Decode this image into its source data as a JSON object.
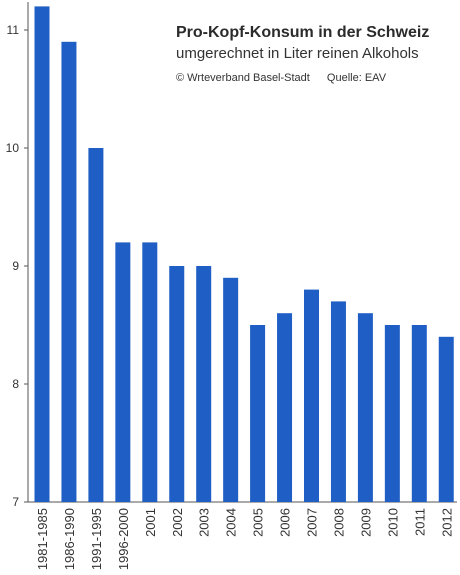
{
  "header": {
    "title": "Pro-Kopf-Konsum in der Schweiz",
    "subtitle": "umgerechnet in Liter reinen Alkohols",
    "copyright": "© Wrteverband Basel-Stadt",
    "source": "Quelle: EAV"
  },
  "colors": {
    "bar": "#1f5fc5",
    "axis": "#555555"
  },
  "chart_data": {
    "type": "bar",
    "title": "Pro-Kopf-Konsum in der Schweiz",
    "subtitle": "umgerechnet in Liter reinen Alkohols",
    "categories": [
      "1981-1985",
      "1986-1990",
      "1991-1995",
      "1996-2000",
      "2001",
      "2002",
      "2003",
      "2004",
      "2005",
      "2006",
      "2007",
      "2008",
      "2009",
      "2010",
      "2011",
      "2012"
    ],
    "values": [
      11.2,
      10.9,
      10.0,
      9.2,
      9.2,
      9.0,
      9.0,
      8.9,
      8.5,
      8.6,
      8.8,
      8.7,
      8.6,
      8.5,
      8.5,
      8.4
    ],
    "yticks": [
      7,
      8,
      9,
      10,
      11
    ],
    "ylim": [
      7,
      11.4
    ],
    "xlabel": "",
    "ylabel": "",
    "grid": false,
    "legend": "none"
  }
}
